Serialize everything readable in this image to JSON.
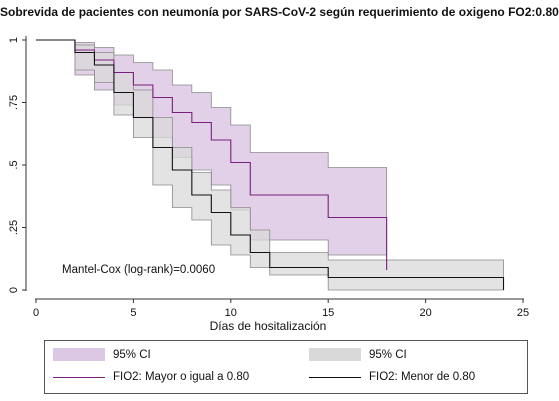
{
  "chart_data": {
    "type": "line",
    "title": "Sobrevida de pacientes con neumonía por SARS-CoV-2 según requerimiento de oxigeno FO2:0.80",
    "xlabel": "Días de hositalización",
    "ylabel": "",
    "xlim": [
      0,
      25
    ],
    "ylim": [
      0,
      1
    ],
    "x_ticks": [
      0,
      5,
      10,
      15,
      20,
      25
    ],
    "x_tick_labels": [
      "0",
      "5",
      "10",
      "15",
      "20",
      "25"
    ],
    "y_ticks": [
      0,
      0.25,
      0.5,
      0.75,
      1
    ],
    "y_tick_labels": [
      "0",
      ".25",
      ".5",
      ".75",
      "1"
    ],
    "grid": false,
    "annotation": "Mantel-Cox (log-rank)=0.0060",
    "series": [
      {
        "name": "FIO2: Mayor o igual a 0.80",
        "color": "#7b1f7e",
        "band_color": "#dcc8e4",
        "step_x": [
          1,
          2,
          3,
          4,
          5,
          6,
          7,
          8,
          9,
          10,
          11,
          15,
          18
        ],
        "step_y": [
          1,
          0.96,
          0.92,
          0.87,
          0.82,
          0.77,
          0.71,
          0.67,
          0.6,
          0.51,
          0.38,
          0.29,
          0.08
        ],
        "ci_lower": [
          1,
          0.86,
          0.8,
          0.74,
          0.69,
          0.61,
          0.53,
          0.48,
          0.42,
          0.32,
          0.2,
          0.14,
          0.14
        ],
        "ci_upper": [
          1,
          0.99,
          0.97,
          0.94,
          0.91,
          0.88,
          0.82,
          0.79,
          0.73,
          0.66,
          0.55,
          0.49,
          0.49
        ]
      },
      {
        "name": "FIO2: Menor de 0.80",
        "color": "#111111",
        "band_color": "#d9d9d9",
        "step_x": [
          1,
          2,
          3,
          4,
          5,
          6,
          7,
          8,
          9,
          10,
          11,
          12,
          15,
          24
        ],
        "step_y": [
          1,
          0.95,
          0.9,
          0.79,
          0.69,
          0.57,
          0.48,
          0.38,
          0.31,
          0.22,
          0.15,
          0.09,
          0.05,
          0
        ],
        "ci_lower": [
          1,
          0.88,
          0.83,
          0.7,
          0.61,
          0.42,
          0.33,
          0.28,
          0.18,
          0.14,
          0.09,
          0.06,
          0.0,
          0
        ],
        "ci_upper": [
          1,
          0.98,
          0.95,
          0.87,
          0.8,
          0.69,
          0.57,
          0.47,
          0.4,
          0.33,
          0.24,
          0.15,
          0.12,
          0.12
        ]
      }
    ],
    "legend": {
      "position": "bottom",
      "items": [
        {
          "label": "95% CI",
          "kind": "band",
          "color": "#dcc8e4"
        },
        {
          "label": "95% CI",
          "kind": "band",
          "color": "#d9d9d9"
        },
        {
          "label": "FIO2: Mayor o igual a 0.80",
          "kind": "line",
          "color": "#7b1f7e"
        },
        {
          "label": "FIO2: Menor de 0.80",
          "kind": "line",
          "color": "#111111"
        }
      ]
    }
  }
}
